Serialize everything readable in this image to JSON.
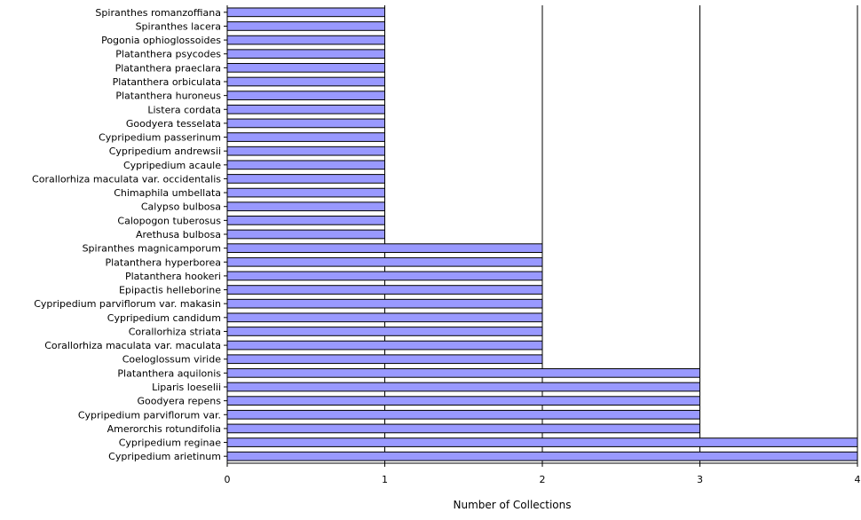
{
  "chart_data": {
    "type": "bar",
    "orientation": "horizontal",
    "categories": [
      "Spiranthes romanzoffiana",
      "Spiranthes lacera",
      "Pogonia ophioglossoides",
      "Platanthera psycodes",
      "Platanthera praeclara",
      "Platanthera orbiculata",
      "Platanthera huroneus",
      "Listera cordata",
      "Goodyera tesselata",
      "Cypripedium passerinum",
      "Cypripedium andrewsii",
      "Cypripedium acaule",
      "Corallorhiza maculata var. occidentalis",
      "Chimaphila umbellata",
      "Calypso bulbosa",
      "Calopogon tuberosus",
      "Arethusa bulbosa",
      "Spiranthes magnicamporum",
      "Platanthera hyperborea",
      "Platanthera hookeri",
      "Epipactis helleborine",
      "Cypripedium parviflorum var. makasin",
      "Cypripedium candidum",
      "Corallorhiza striata",
      "Corallorhiza maculata var. maculata",
      "Coeloglossum viride",
      "Platanthera aquilonis",
      "Liparis loeselii",
      "Goodyera repens",
      "Cypripedium parviflorum var.",
      "Amerorchis rotundifolia",
      "Cypripedium reginae",
      "Cypripedium arietinum"
    ],
    "values": [
      1,
      1,
      1,
      1,
      1,
      1,
      1,
      1,
      1,
      1,
      1,
      1,
      1,
      1,
      1,
      1,
      1,
      2,
      2,
      2,
      2,
      2,
      2,
      2,
      2,
      2,
      3,
      3,
      3,
      3,
      3,
      4,
      4
    ],
    "title": "",
    "xlabel": "Number of Collections",
    "ylabel": "",
    "xlim": [
      0,
      4
    ],
    "xticks": [
      "0",
      "1",
      "2",
      "3",
      "4"
    ],
    "grid": "vertical",
    "legend": "none",
    "bar_color": "#9999ff",
    "bar_edge_color": "#000000"
  }
}
